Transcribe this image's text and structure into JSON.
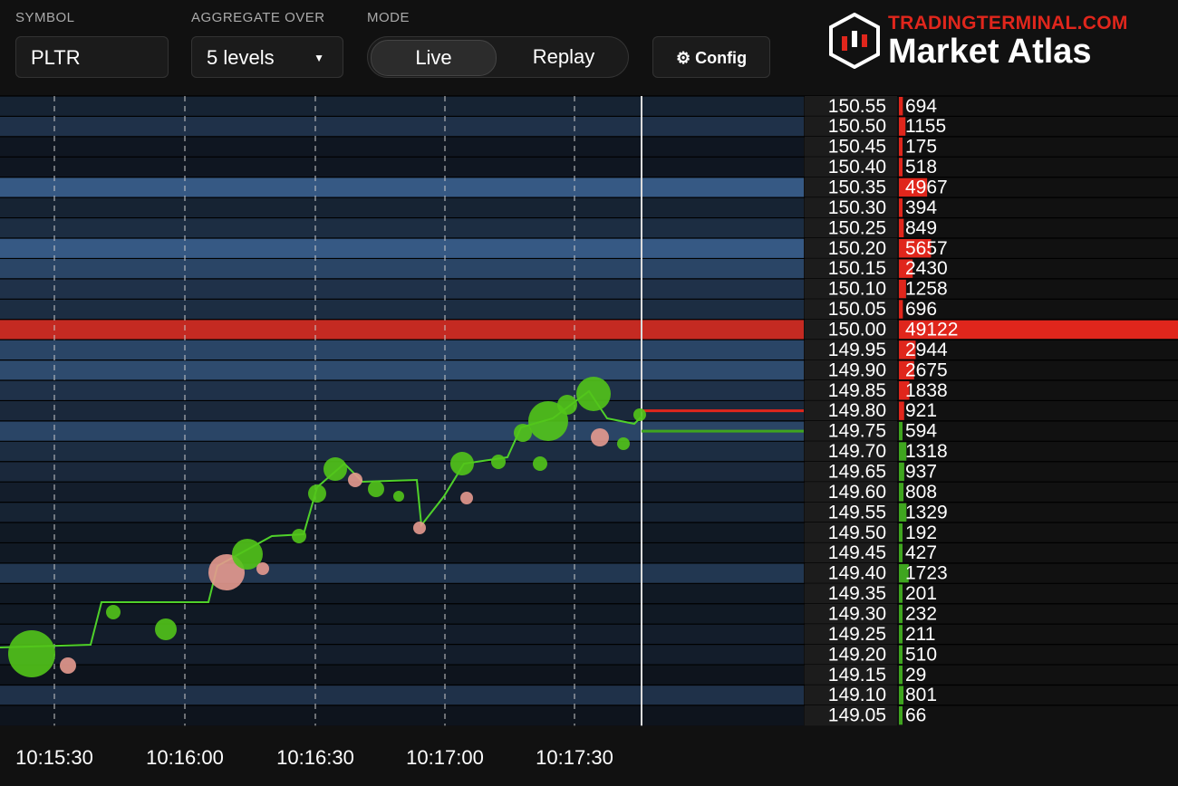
{
  "header": {
    "symbol_label": "SYMBOL",
    "symbol": "PLTR",
    "aggregate_label": "AGGREGATE OVER",
    "aggregate": "5 levels",
    "mode_label": "MODE",
    "modes": [
      "Live",
      "Replay"
    ],
    "config": "Config",
    "brand": {
      "site": "TRADINGTERMINAL.COM",
      "name": "Market Atlas"
    }
  },
  "time_axis": [
    "10:15:30",
    "10:16:00",
    "10:16:30",
    "10:17:00",
    "10:17:30"
  ],
  "order_book": {
    "ask_color": "#e0261c",
    "bid_color": "#3fa51f",
    "asks": [
      {
        "price": "150.55",
        "size": 694
      },
      {
        "price": "150.50",
        "size": 1155
      },
      {
        "price": "150.45",
        "size": 175
      },
      {
        "price": "150.40",
        "size": 518
      },
      {
        "price": "150.35",
        "size": 4967
      },
      {
        "price": "150.30",
        "size": 394
      },
      {
        "price": "150.25",
        "size": 849
      },
      {
        "price": "150.20",
        "size": 5657
      },
      {
        "price": "150.15",
        "size": 2430
      },
      {
        "price": "150.10",
        "size": 1258
      },
      {
        "price": "150.05",
        "size": 696
      },
      {
        "price": "150.00",
        "size": 49122
      },
      {
        "price": "149.95",
        "size": 2944
      },
      {
        "price": "149.90",
        "size": 2675
      },
      {
        "price": "149.85",
        "size": 1838
      },
      {
        "price": "149.80",
        "size": 921
      }
    ],
    "bids": [
      {
        "price": "149.75",
        "size": 594
      },
      {
        "price": "149.70",
        "size": 1318
      },
      {
        "price": "149.65",
        "size": 937
      },
      {
        "price": "149.60",
        "size": 808
      },
      {
        "price": "149.55",
        "size": 1329
      },
      {
        "price": "149.50",
        "size": 192
      },
      {
        "price": "149.45",
        "size": 427
      },
      {
        "price": "149.40",
        "size": 1723
      },
      {
        "price": "149.35",
        "size": 201
      },
      {
        "price": "149.30",
        "size": 232
      },
      {
        "price": "149.25",
        "size": 211
      },
      {
        "price": "149.20",
        "size": 510
      },
      {
        "price": "149.15",
        "size": 29
      },
      {
        "price": "149.10",
        "size": 801
      },
      {
        "price": "149.05",
        "size": 66
      }
    ]
  }
}
